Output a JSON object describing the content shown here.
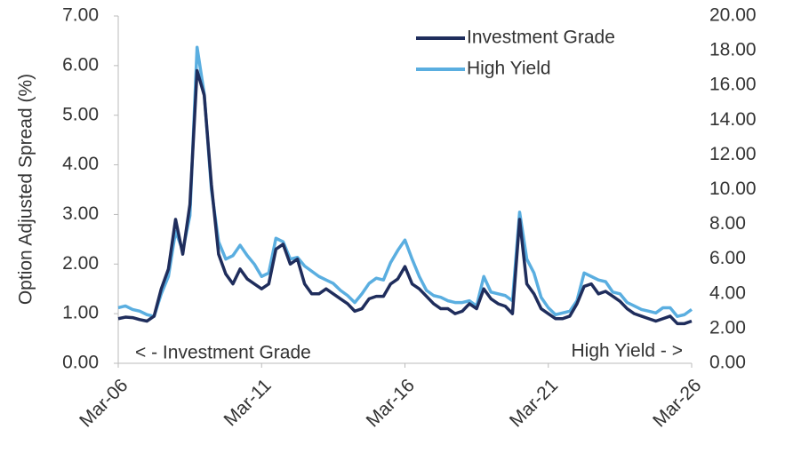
{
  "chart_data": {
    "type": "line",
    "ylabel": "Option Adjusted Spread (%)",
    "annotations": [
      "< - Investment Grade",
      "High Yield - >"
    ],
    "legend": "upper center",
    "categories": [
      "Mar-06",
      null,
      null,
      null,
      null,
      null,
      null,
      null,
      null,
      null,
      null,
      null,
      null,
      null,
      null,
      null,
      null,
      null,
      null,
      null,
      "Mar-11",
      null,
      null,
      null,
      null,
      null,
      null,
      null,
      null,
      null,
      null,
      null,
      null,
      null,
      null,
      null,
      null,
      null,
      null,
      null,
      "Mar-16",
      null,
      null,
      null,
      null,
      null,
      null,
      null,
      null,
      null,
      null,
      null,
      null,
      null,
      null,
      null,
      null,
      null,
      null,
      null,
      "Mar-21",
      null,
      null,
      null,
      null,
      null,
      null,
      null,
      null,
      null,
      null,
      null,
      null,
      null,
      null,
      null,
      null,
      null,
      null,
      null,
      "Mar-26"
    ],
    "ylim": [
      0,
      7
    ],
    "yticks": [
      {
        "value": 0,
        "label": "0.00"
      },
      {
        "value": 1,
        "label": "1.00"
      },
      {
        "value": 2,
        "label": "2.00"
      },
      {
        "value": 3,
        "label": "3.00"
      },
      {
        "value": 4,
        "label": "4.00"
      },
      {
        "value": 5,
        "label": "5.00"
      },
      {
        "value": 6,
        "label": "6.00"
      },
      {
        "value": 7,
        "label": "7.00"
      }
    ],
    "y2lim": [
      0,
      20
    ],
    "y2ticks": [
      {
        "value": 0,
        "label": "0.00"
      },
      {
        "value": 2,
        "label": "2.00"
      },
      {
        "value": 4,
        "label": "4.00"
      },
      {
        "value": 6,
        "label": "6.00"
      },
      {
        "value": 8,
        "label": "8.00"
      },
      {
        "value": 10,
        "label": "10.00"
      },
      {
        "value": 12,
        "label": "12.00"
      },
      {
        "value": 14,
        "label": "14.00"
      },
      {
        "value": 16,
        "label": "16.00"
      },
      {
        "value": 18,
        "label": "18.00"
      },
      {
        "value": 20,
        "label": "20.00"
      }
    ],
    "series": [
      {
        "name": "Investment Grade",
        "color": "#1f2d5c",
        "axis": "y",
        "values": [
          0.9,
          0.93,
          0.92,
          0.88,
          0.85,
          0.95,
          1.5,
          1.9,
          2.9,
          2.2,
          3.2,
          5.9,
          5.4,
          3.6,
          2.2,
          1.8,
          1.6,
          1.9,
          1.7,
          1.6,
          1.5,
          1.6,
          2.3,
          2.4,
          2.0,
          2.1,
          1.6,
          1.4,
          1.4,
          1.5,
          1.4,
          1.3,
          1.2,
          1.05,
          1.1,
          1.3,
          1.35,
          1.35,
          1.6,
          1.7,
          1.95,
          1.6,
          1.5,
          1.35,
          1.2,
          1.1,
          1.1,
          1.0,
          1.05,
          1.2,
          1.1,
          1.5,
          1.3,
          1.2,
          1.15,
          1.0,
          2.9,
          1.6,
          1.4,
          1.1,
          1.0,
          0.9,
          0.9,
          0.95,
          1.2,
          1.55,
          1.6,
          1.4,
          1.45,
          1.35,
          1.25,
          1.1,
          1.0,
          0.95,
          0.9,
          0.85,
          0.9,
          0.95,
          0.8,
          0.8,
          0.85
        ]
      },
      {
        "name": "High Yield",
        "color": "#5aaee0",
        "axis": "y2",
        "values": [
          3.2,
          3.3,
          3.1,
          3.0,
          2.8,
          2.7,
          4.0,
          5.0,
          7.6,
          6.5,
          8.5,
          18.2,
          15.5,
          10.0,
          7.0,
          6.0,
          6.2,
          6.8,
          6.2,
          5.7,
          5.0,
          5.2,
          7.2,
          7.0,
          6.0,
          6.1,
          5.6,
          5.3,
          5.0,
          4.8,
          4.6,
          4.2,
          3.9,
          3.5,
          4.0,
          4.6,
          4.9,
          4.8,
          5.8,
          6.5,
          7.1,
          6.0,
          5.0,
          4.2,
          3.9,
          3.8,
          3.6,
          3.5,
          3.5,
          3.6,
          3.3,
          5.0,
          4.1,
          4.0,
          3.9,
          3.6,
          8.7,
          6.0,
          5.2,
          3.8,
          3.2,
          2.8,
          2.9,
          3.0,
          3.6,
          5.2,
          5.0,
          4.8,
          4.7,
          4.1,
          4.0,
          3.5,
          3.3,
          3.1,
          3.0,
          2.9,
          3.2,
          3.2,
          2.7,
          2.8,
          3.1
        ]
      }
    ]
  }
}
